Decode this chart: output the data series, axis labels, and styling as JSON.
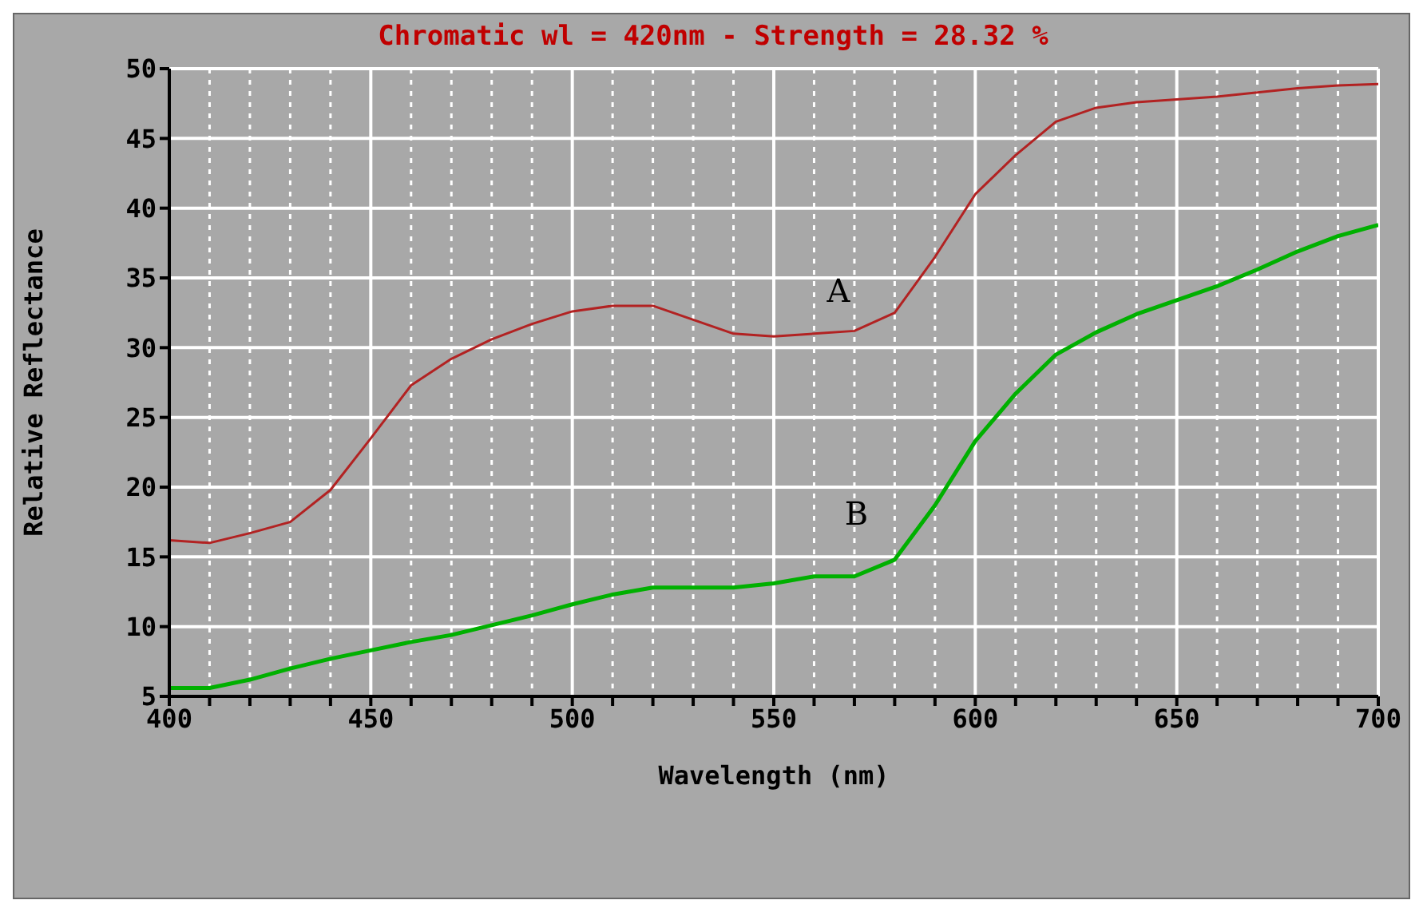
{
  "chart_data": {
    "type": "line",
    "title": "Chromatic wl = 420nm - Strength = 28.32 %",
    "xlabel": "Wavelength (nm)",
    "ylabel": "Relative Reflectance",
    "x": [
      400,
      410,
      420,
      430,
      440,
      450,
      460,
      470,
      480,
      490,
      500,
      510,
      520,
      530,
      540,
      550,
      560,
      570,
      580,
      590,
      600,
      610,
      620,
      630,
      640,
      650,
      660,
      670,
      680,
      690,
      700
    ],
    "series": [
      {
        "name": "A",
        "color": "#b22222",
        "values": [
          16.2,
          16.0,
          16.7,
          17.5,
          19.8,
          23.5,
          27.3,
          29.2,
          30.6,
          31.7,
          32.6,
          33.0,
          33.0,
          32.0,
          31.0,
          30.8,
          31.0,
          31.2,
          32.5,
          36.5,
          41.0,
          43.8,
          46.2,
          47.2,
          47.6,
          47.8,
          48.0,
          48.3,
          48.6,
          48.8,
          48.9
        ]
      },
      {
        "name": "B",
        "color": "#00b000",
        "values": [
          5.6,
          5.6,
          6.2,
          7.0,
          7.7,
          8.3,
          8.9,
          9.4,
          10.1,
          10.8,
          11.6,
          12.3,
          12.8,
          12.8,
          12.8,
          13.1,
          13.6,
          13.6,
          14.8,
          18.7,
          23.3,
          26.7,
          29.5,
          31.1,
          32.4,
          33.4,
          34.4,
          35.6,
          36.9,
          38.0,
          38.8
        ]
      }
    ],
    "xlim": [
      400,
      700
    ],
    "xticks": [
      400,
      {
        "value": 410,
        "label": null
      },
      {
        "value": 420,
        "label": null
      },
      {
        "value": 430,
        "label": null
      },
      {
        "value": 440,
        "label": null
      },
      450,
      {
        "value": 460,
        "label": null
      },
      {
        "value": 470,
        "label": null
      },
      {
        "value": 480,
        "label": null
      },
      {
        "value": 490,
        "label": null
      },
      500,
      {
        "value": 510,
        "label": null
      },
      {
        "value": 520,
        "label": null
      },
      {
        "value": 530,
        "label": null
      },
      {
        "value": 540,
        "label": null
      },
      550,
      {
        "value": 560,
        "label": null
      },
      {
        "value": 570,
        "label": null
      },
      {
        "value": 580,
        "label": null
      },
      {
        "value": 590,
        "label": null
      },
      600,
      {
        "value": 610,
        "label": null
      },
      {
        "value": 620,
        "label": null
      },
      {
        "value": 630,
        "label": null
      },
      {
        "value": 640,
        "label": null
      },
      650,
      {
        "value": 660,
        "label": null
      },
      {
        "value": 670,
        "label": null
      },
      {
        "value": 680,
        "label": null
      },
      {
        "value": 690,
        "label": null
      },
      700
    ],
    "ylim": [
      5,
      50
    ],
    "yticks": [
      5,
      10,
      15,
      20,
      25,
      30,
      35,
      40,
      45,
      50
    ],
    "grid": true,
    "marker": "none",
    "line_style": "solid"
  }
}
